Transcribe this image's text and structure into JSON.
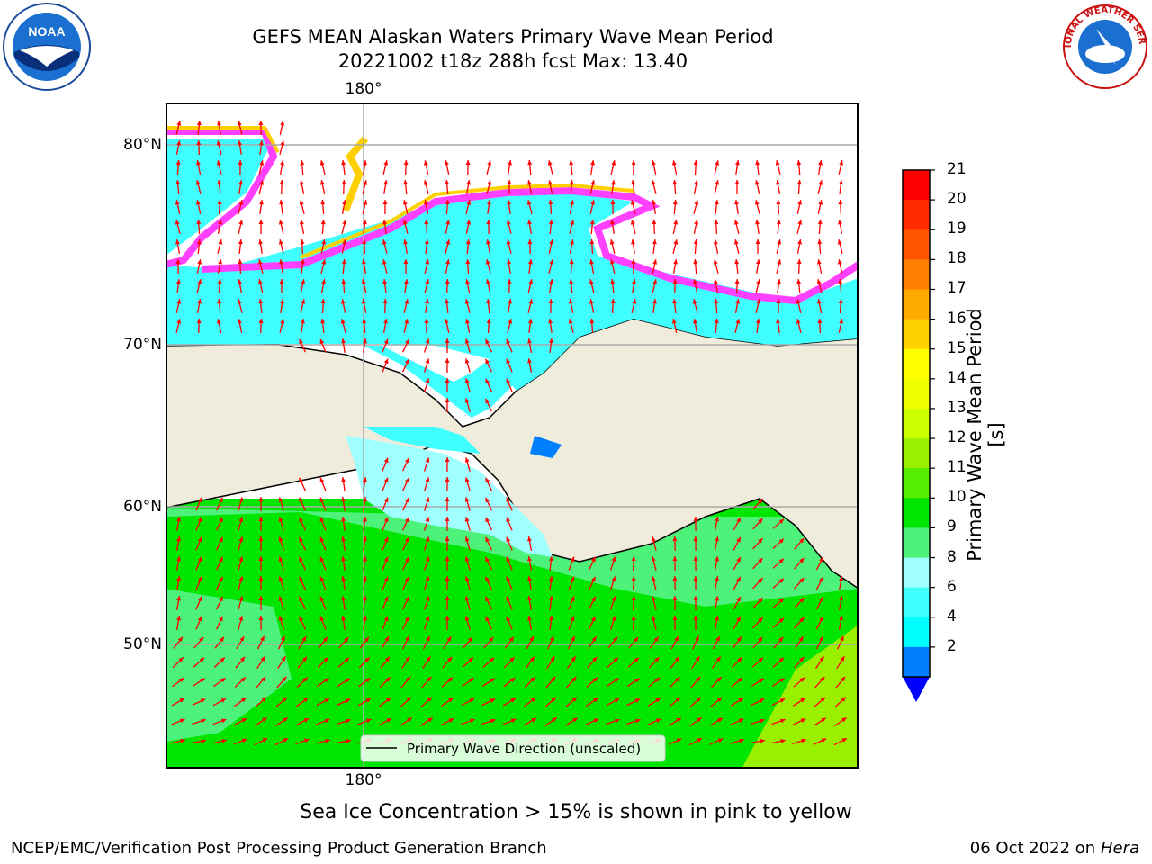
{
  "header": {
    "title_line1": "GEFS MEAN Alaskan Waters Primary Wave Mean Period",
    "title_line2": "20221002 t18z 288h fcst   Max: 13.40"
  },
  "logos": {
    "left": "noaa-logo",
    "left_text": "NOAA",
    "right": "nws-logo",
    "right_text": "NATIONAL WEATHER SERVICE"
  },
  "map": {
    "lon_label_top": "180°",
    "lon_label_bottom": "180°",
    "lat_labels": [
      "80°N",
      "70°N",
      "60°N",
      "50°N"
    ],
    "legend_label": "Primary Wave Direction (unscaled)",
    "colors": {
      "land": "#efecdc",
      "green": "#00e600",
      "light_green": "#4cf27a",
      "cyan": "#40ffff",
      "light_cyan": "#a0ffff",
      "ice_pink": "#ff40ff",
      "ice_yellow": "#ffff00",
      "arrow": "#ff0000"
    }
  },
  "colorbar": {
    "label": "Primary Wave Mean Period [s]",
    "ticks": [
      "21",
      "20",
      "19",
      "18",
      "17",
      "16",
      "15",
      "14",
      "13",
      "12",
      "11",
      "10",
      "9",
      "8",
      "6",
      "4",
      "2"
    ],
    "colors": [
      "#ff0000",
      "#ff2a00",
      "#ff5500",
      "#ff8000",
      "#ffaa00",
      "#ffd000",
      "#ffff00",
      "#eeff00",
      "#ccff00",
      "#99f000",
      "#55ee00",
      "#00e600",
      "#4cf27a",
      "#a0ffff",
      "#40ffff",
      "#00ffff",
      "#0080ff"
    ],
    "under_color": "#0000ff"
  },
  "footer": {
    "note": "Sea Ice Concentration > 15% is shown in pink to yellow",
    "left": "NCEP/EMC/Verification Post Processing Product Generation Branch",
    "right_date": "06 Oct 2022 on ",
    "right_host": "Hera"
  }
}
